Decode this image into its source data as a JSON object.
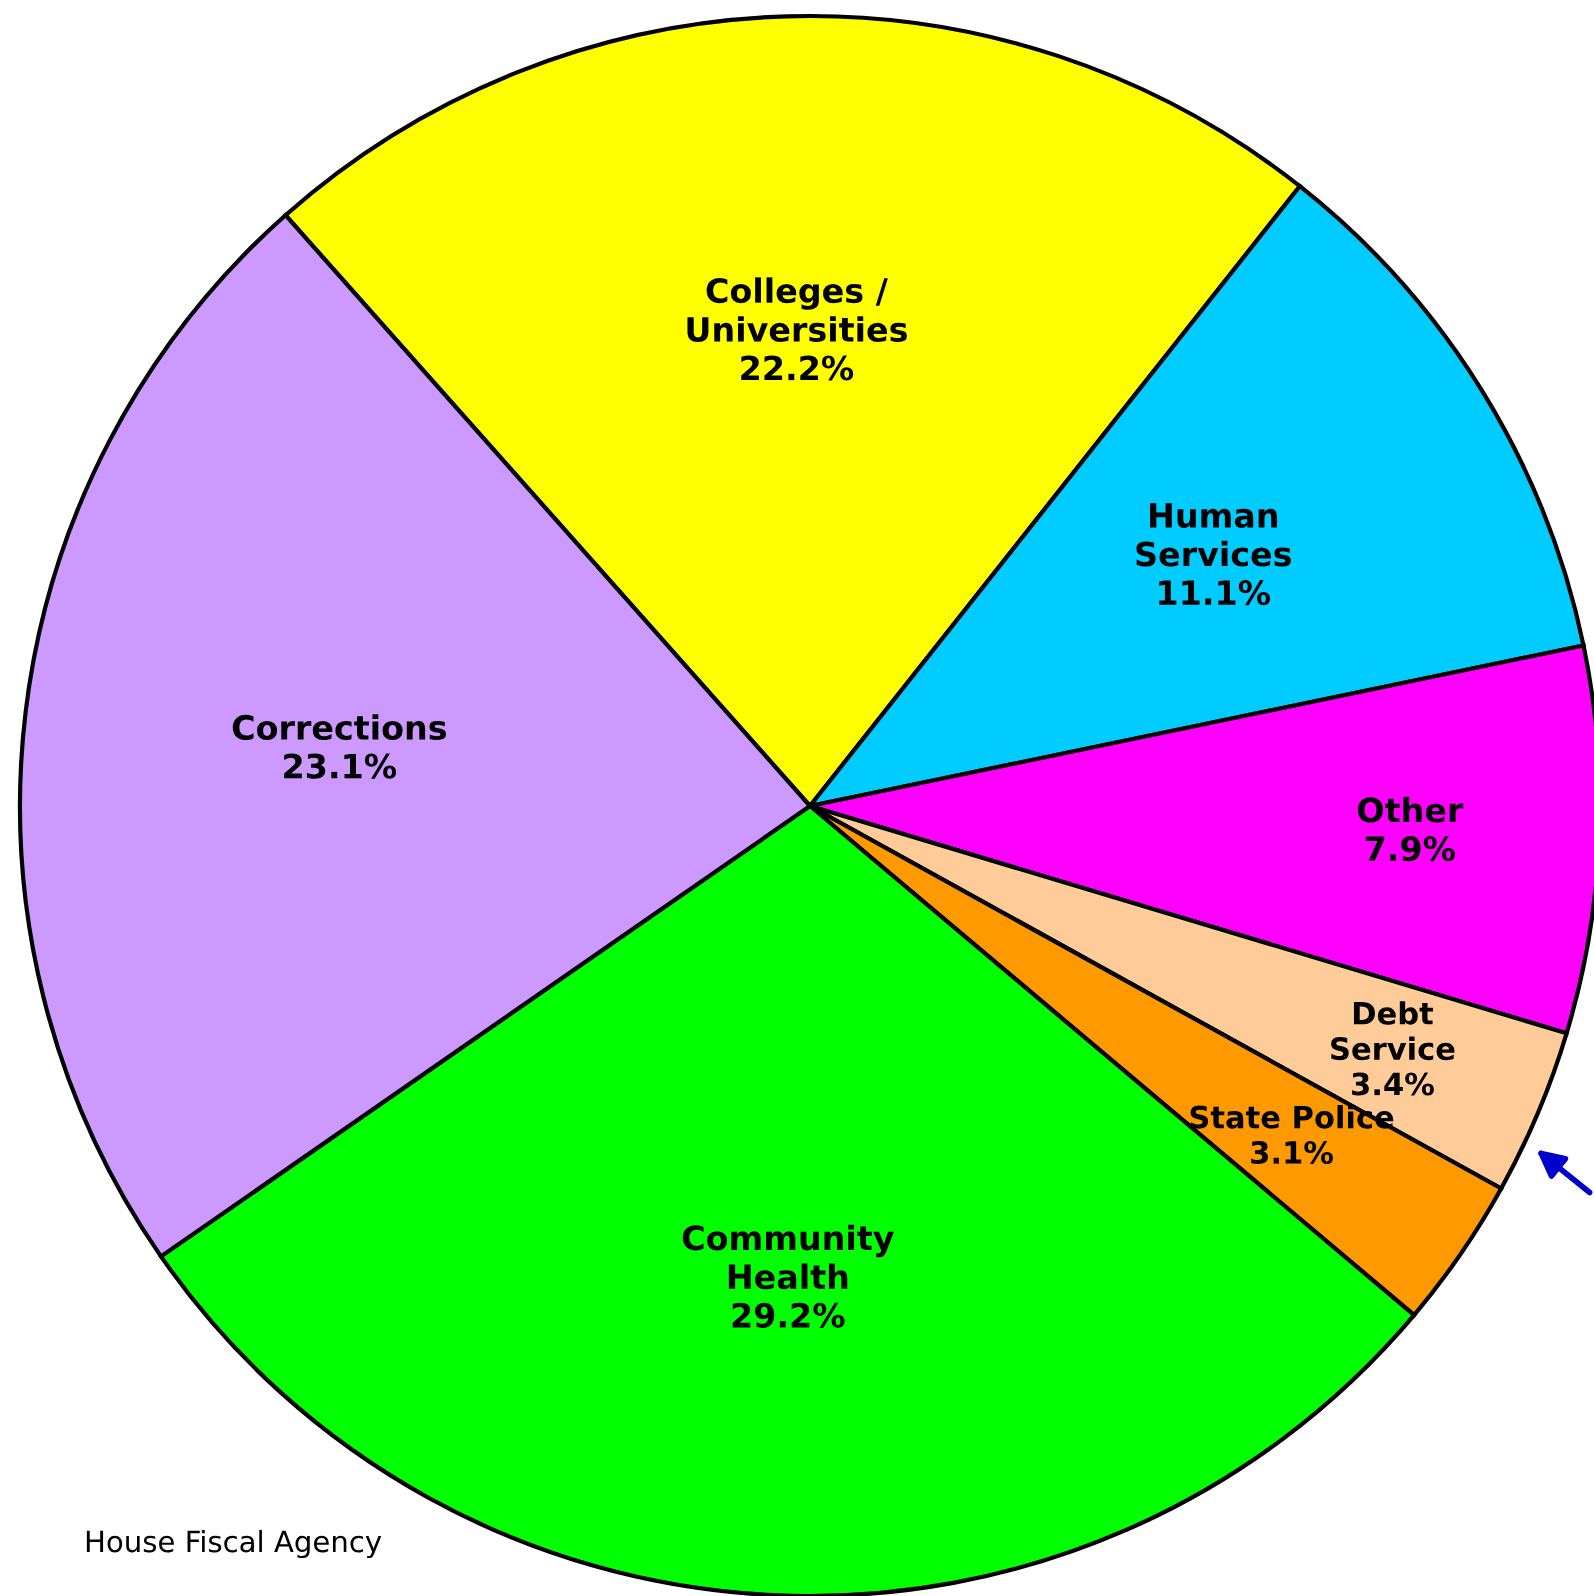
{
  "chart_data": {
    "type": "pie",
    "categories": [
      "Colleges /\nUniversities",
      "Human\nServices",
      "Other",
      "Debt\nService",
      "State Police",
      "Community\nHealth",
      "Corrections"
    ],
    "values": [
      22.2,
      11.1,
      7.9,
      3.4,
      3.1,
      29.2,
      23.1
    ],
    "colors": [
      "#ffff00",
      "#00ccff",
      "#ff00ff",
      "#ffcc99",
      "#ff9900",
      "#00ff00",
      "#cc99ff"
    ],
    "value_labels": [
      "22.2%",
      "11.1%",
      "7.9%",
      "3.4%",
      "3.1%",
      "29.2%",
      "23.1%"
    ],
    "annotations": [
      "House Fiscal Agency"
    ]
  }
}
